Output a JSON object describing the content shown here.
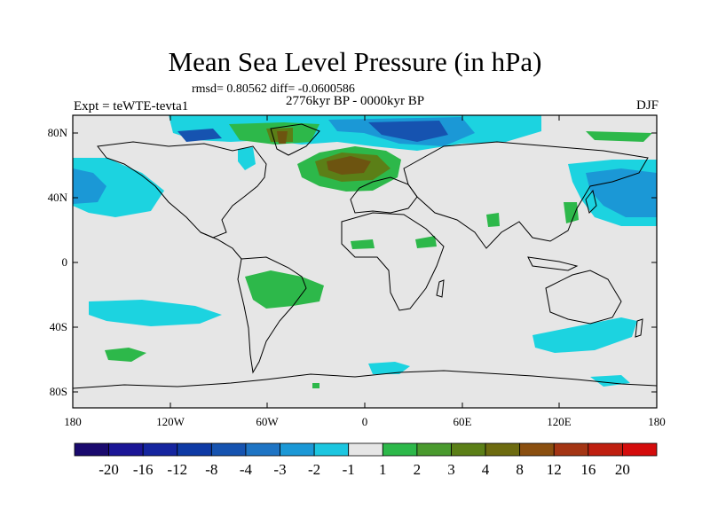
{
  "title": "Mean Sea Level Pressure (in hPa)",
  "stats": "rmsd= 0.80562 diff= -0.0600586",
  "period": "2776kyr BP - 0000kyr BP",
  "experiment": "Expt = teWTE-tevta1",
  "season": "DJF",
  "y_axis_labels": [
    "80N",
    "40N",
    "0",
    "40S",
    "80S"
  ],
  "x_axis_labels": [
    "180",
    "120W",
    "60W",
    "0",
    "60E",
    "120E",
    "180"
  ],
  "colorbar": {
    "labels": [
      "-20",
      "-16",
      "-12",
      "-8",
      "-4",
      "-3",
      "-2",
      "-1",
      "1",
      "2",
      "3",
      "4",
      "8",
      "12",
      "16",
      "20"
    ],
    "colors": [
      "#1a0a6e",
      "#1b1596",
      "#15259f",
      "#0e3aa5",
      "#1653b0",
      "#1e74c4",
      "#1b98d6",
      "#1cc6e0",
      "#e6e6e6",
      "#2db84a",
      "#4a9a2e",
      "#5b7f17",
      "#6d6b10",
      "#8a4f10",
      "#a43514",
      "#bf1f10",
      "#d40c0c"
    ]
  },
  "colors": {
    "background": "#e6e6e6",
    "light_blue": "#1cd3e0",
    "mid_blue": "#1b98d6",
    "dark_blue": "#1653b0",
    "green": "#2db84a",
    "dark_green": "#5b7f17",
    "brown": "#6d5410"
  }
}
